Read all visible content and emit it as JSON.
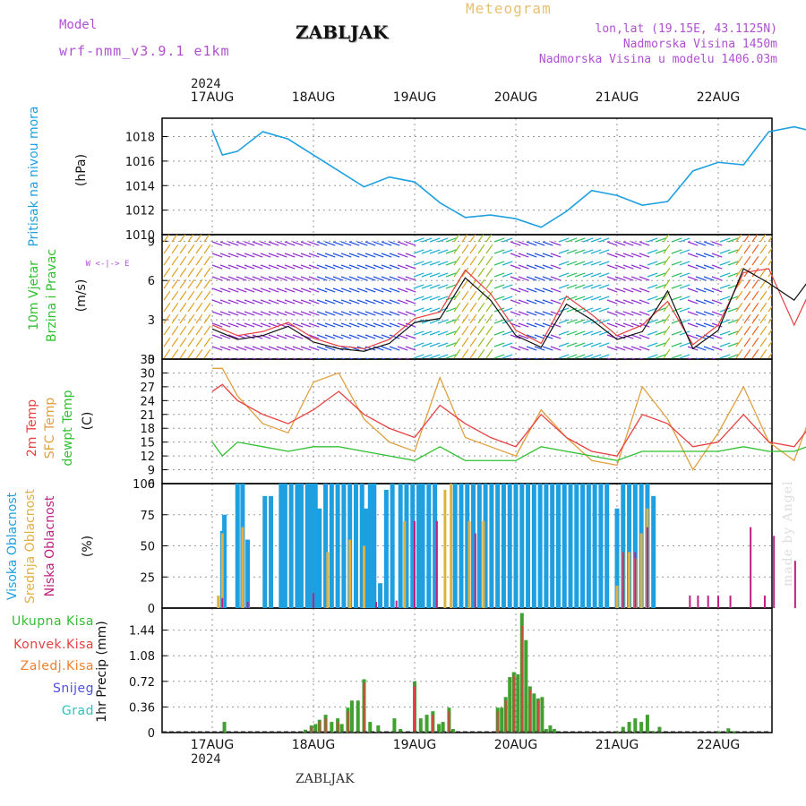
{
  "header": {
    "model_label": "Model",
    "model_name": "wrf-nmm_v3.9.1  e1km",
    "station": "ZABLJAK",
    "meteogram": "Meteogram",
    "info1": "lon,lat (19.15E, 43.1125N)",
    "info2": "Nadmorska Visina 1450m",
    "info3": "Nadmorska Visina u modelu 1406.03m"
  },
  "footer": {
    "station": "ZABLJAK",
    "watermark": "made by Angel"
  },
  "time_axis": {
    "year": "2024",
    "labels": [
      "17AUG",
      "18AUG",
      "19AUG",
      "20AUG",
      "21AUG",
      "22AUG"
    ]
  },
  "colors": {
    "pressure": "#1ea0e0",
    "temp2m": "#e84040",
    "sfc": "#e0a040",
    "dewpt": "#30c030",
    "high": "#1ea0e0",
    "mid": "#e0b040",
    "low": "#c02080",
    "total": "#40a030",
    "conv": "#e04040"
  },
  "chart_data": [
    {
      "type": "line",
      "panel": "pressure",
      "ylabel": "Pritisak na nivou mora",
      "units": "(hPa)",
      "yticks": [
        1010,
        1012,
        1014,
        1016,
        1018
      ],
      "ylim": [
        1010,
        1019.5
      ],
      "x": [
        0,
        0.1,
        0.25,
        0.5,
        0.75,
        1,
        1.25,
        1.5,
        1.75,
        2,
        2.25,
        2.5,
        2.75,
        3,
        3.25,
        3.5,
        3.75,
        4,
        4.25,
        4.5,
        4.75,
        5,
        5.25,
        5.5,
        5.75,
        6,
        6.1
      ],
      "series": [
        {
          "values": [
            1018.5,
            1016.5,
            1016.8,
            1018.4,
            1017.8,
            1016.5,
            1015.2,
            1013.9,
            1014.7,
            1014.3,
            1012.6,
            1011.4,
            1011.6,
            1011.3,
            1010.6,
            1011.9,
            1013.6,
            1013.2,
            1012.4,
            1012.7,
            1015.2,
            1015.9,
            1015.7,
            1018.4,
            1018.8,
            1018.3,
            1017.2
          ]
        }
      ]
    },
    {
      "type": "line",
      "panel": "wind",
      "ylabel": "10m Vjetar Brzina i Pravac",
      "units": "(m/s)",
      "compass": "W <-|-> E",
      "yticks": [
        0,
        3,
        6,
        9
      ],
      "ylim": [
        0,
        9.5
      ],
      "x": [
        0,
        0.25,
        0.5,
        0.75,
        1,
        1.25,
        1.5,
        1.75,
        2,
        2.25,
        2.5,
        2.75,
        3,
        3.25,
        3.5,
        3.75,
        4,
        4.25,
        4.5,
        4.75,
        5,
        5.25,
        5.5,
        5.75,
        6,
        6.1
      ],
      "series": [
        {
          "name": "speed",
          "values": [
            2.3,
            1.5,
            1.8,
            2.5,
            1.3,
            0.8,
            0.6,
            1.2,
            2.8,
            3.1,
            6.2,
            4.5,
            1.8,
            0.9,
            4.2,
            3.0,
            1.5,
            2.1,
            5.2,
            0.8,
            2.2,
            6.9,
            5.8,
            4.5,
            7.1,
            6.4
          ]
        },
        {
          "name": "gust",
          "values": [
            2.6,
            1.8,
            2.1,
            2.8,
            1.6,
            1.0,
            0.8,
            1.5,
            3.1,
            3.6,
            6.8,
            5.0,
            2.2,
            1.2,
            4.8,
            3.4,
            1.8,
            2.6,
            4.4,
            1.1,
            2.6,
            6.6,
            6.9,
            2.6,
            6.7,
            6.9
          ]
        }
      ]
    },
    {
      "type": "line",
      "panel": "temperature",
      "legend": [
        "2m Temp",
        "SFC Temp",
        "dewpt Temp"
      ],
      "units": "(C)",
      "yticks": [
        6,
        9,
        12,
        15,
        18,
        21,
        24,
        27,
        30,
        33
      ],
      "ylim": [
        6,
        33
      ],
      "x": [
        0,
        0.1,
        0.25,
        0.5,
        0.75,
        1,
        1.25,
        1.5,
        1.75,
        2,
        2.25,
        2.5,
        2.75,
        3,
        3.25,
        3.5,
        3.75,
        4,
        4.25,
        4.5,
        4.75,
        5,
        5.25,
        5.5,
        5.75,
        6,
        6.1
      ],
      "series": [
        {
          "name": "2m Temp",
          "values": [
            26,
            27.5,
            24,
            21,
            19,
            22,
            26,
            21,
            18,
            16,
            23,
            19,
            16,
            14,
            21,
            16,
            13,
            12,
            21,
            19,
            14,
            15,
            21,
            15,
            14,
            21,
            22.5
          ]
        },
        {
          "name": "SFC Temp",
          "values": [
            31,
            31,
            25,
            19,
            17,
            28,
            30,
            20,
            15,
            13,
            29,
            16,
            14,
            12,
            22,
            16,
            11,
            10,
            27,
            20,
            9,
            17,
            27,
            15,
            11,
            26,
            27.5
          ]
        },
        {
          "name": "dewpt Temp",
          "values": [
            15,
            12,
            15,
            14,
            13,
            14,
            14,
            13,
            12,
            11,
            14,
            11,
            11,
            11,
            14,
            13,
            12,
            11,
            13,
            13,
            13,
            13,
            14,
            13,
            13,
            15,
            15
          ]
        }
      ]
    },
    {
      "type": "bar",
      "panel": "clouds",
      "legend": [
        "Visoka Oblacnost",
        "Srednja Oblacnost",
        "Niska Oblacnost"
      ],
      "units": "(%)",
      "yticks": [
        0,
        25,
        50,
        75,
        100
      ],
      "ylim": [
        0,
        100
      ],
      "series": [
        {
          "name": "Visoka Oblacnost",
          "x": [
            0.1,
            0.12,
            0.25,
            0.3,
            0.35,
            0.52,
            0.58,
            0.68,
            0.72,
            0.78,
            0.84,
            0.88,
            0.94,
            0.98,
            1.02,
            1.06,
            1.12,
            1.18,
            1.24,
            1.3,
            1.36,
            1.42,
            1.48,
            1.52,
            1.56,
            1.6,
            1.66,
            1.72,
            1.78,
            1.86,
            1.92,
            1.98,
            2.04,
            2.08,
            2.14,
            2.2,
            2.4,
            2.46,
            2.52,
            2.58,
            2.64,
            2.7,
            2.76,
            2.82,
            2.88,
            2.94,
            3.0,
            3.06,
            3.12,
            3.18,
            3.24,
            3.3,
            3.36,
            3.42,
            3.48,
            3.54,
            3.6,
            3.66,
            3.72,
            3.78,
            3.84,
            3.9,
            4.0,
            4.06,
            4.12,
            4.18,
            4.24,
            4.3,
            4.36
          ],
          "values": [
            62,
            75,
            100,
            100,
            55,
            90,
            90,
            100,
            100,
            100,
            100,
            100,
            100,
            100,
            100,
            80,
            100,
            100,
            100,
            100,
            100,
            100,
            100,
            80,
            100,
            100,
            20,
            95,
            100,
            100,
            100,
            100,
            100,
            100,
            100,
            100,
            100,
            100,
            100,
            100,
            100,
            100,
            100,
            100,
            100,
            100,
            100,
            100,
            100,
            100,
            100,
            100,
            100,
            100,
            100,
            100,
            100,
            100,
            100,
            100,
            100,
            100,
            80,
            100,
            100,
            100,
            100,
            100,
            90
          ]
        },
        {
          "name": "Srednja Oblacnost",
          "x": [
            0.06,
            0.1,
            0.3,
            1.14,
            1.36,
            1.5,
            1.9,
            2.3,
            2.36,
            2.54,
            2.68,
            4.0,
            4.06,
            4.12,
            4.18,
            4.24,
            4.3
          ],
          "values": [
            10,
            60,
            65,
            45,
            55,
            50,
            70,
            95,
            100,
            70,
            70,
            18,
            45,
            45,
            40,
            60,
            80
          ]
        },
        {
          "name": "Niska Oblacnost",
          "x": [
            0.1,
            0.35,
            1.0,
            1.62,
            1.82,
            2.0,
            2.22,
            2.6,
            4.06,
            4.18,
            4.3,
            4.72,
            4.8,
            4.9,
            5.0,
            5.12,
            5.32,
            5.46,
            5.55,
            5.76,
            5.9,
            5.96
          ],
          "values": [
            8,
            5,
            12,
            5,
            6,
            70,
            70,
            60,
            45,
            45,
            65,
            10,
            10,
            10,
            10,
            10,
            65,
            10,
            58,
            38,
            10,
            10
          ]
        }
      ]
    },
    {
      "type": "bar",
      "panel": "precipitation",
      "legend": [
        "Ukupna Kisa",
        "Konvek.Kisa",
        "Zaledj.Kisa",
        "Snijeg",
        "Grad"
      ],
      "units": "1hr Precip (mm)",
      "yticks": [
        0,
        0.36,
        0.72,
        1.08,
        1.44
      ],
      "ylim": [
        0,
        1.75
      ],
      "series": [
        {
          "name": "Ukupna Kisa",
          "x": [
            0.12,
            0.92,
            0.98,
            1.02,
            1.06,
            1.12,
            1.18,
            1.24,
            1.28,
            1.34,
            1.38,
            1.44,
            1.5,
            1.56,
            1.64,
            1.8,
            1.86,
            2.0,
            2.06,
            2.12,
            2.18,
            2.24,
            2.28,
            2.34,
            2.38,
            2.82,
            2.86,
            2.9,
            2.94,
            2.98,
            3.02,
            3.06,
            3.1,
            3.14,
            3.18,
            3.22,
            3.26,
            3.3,
            3.34,
            3.38,
            4.0,
            4.06,
            4.12,
            4.18,
            4.24,
            4.3,
            4.36,
            4.42,
            5.0,
            5.1,
            5.16
          ],
          "values": [
            0.15,
            0.04,
            0.1,
            0.12,
            0.18,
            0.25,
            0.15,
            0.2,
            0.12,
            0.35,
            0.45,
            0.45,
            0.75,
            0.15,
            0.1,
            0.2,
            0.05,
            0.72,
            0.2,
            0.25,
            0.3,
            0.12,
            0.15,
            0.35,
            0.05,
            0.35,
            0.35,
            0.5,
            0.78,
            0.85,
            0.82,
            1.68,
            1.3,
            0.65,
            0.55,
            0.48,
            0.5,
            0.05,
            0.1,
            0.05,
            0.02,
            0.08,
            0.15,
            0.2,
            0.15,
            0.25,
            0.02,
            0.08,
            0.02,
            0.06,
            0.02
          ]
        },
        {
          "name": "Konvek.Kisa",
          "x": [
            0.98,
            1.06,
            1.12,
            1.24,
            1.34,
            1.5,
            2.0,
            2.18,
            2.34,
            2.82,
            2.9,
            2.98,
            3.06,
            3.14,
            3.22
          ],
          "values": [
            0.08,
            0.16,
            0.2,
            0.15,
            0.3,
            0.7,
            0.65,
            0.25,
            0.3,
            0.3,
            0.45,
            0.8,
            1.5,
            0.6,
            0.45
          ]
        }
      ]
    }
  ]
}
